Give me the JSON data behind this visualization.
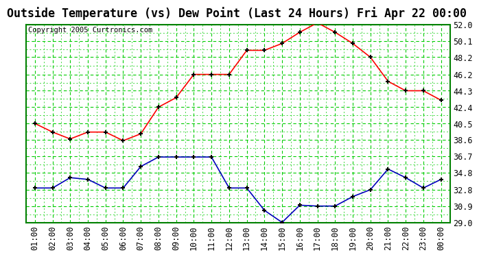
{
  "title": "Outside Temperature (vs) Dew Point (Last 24 Hours) Fri Apr 22 00:00",
  "copyright": "Copyright 2005 Curtronics.com",
  "x_labels": [
    "01:00",
    "02:00",
    "03:00",
    "04:00",
    "05:00",
    "06:00",
    "07:00",
    "08:00",
    "09:00",
    "10:00",
    "11:00",
    "12:00",
    "13:00",
    "14:00",
    "15:00",
    "16:00",
    "17:00",
    "18:00",
    "19:00",
    "20:00",
    "21:00",
    "22:00",
    "23:00",
    "00:00"
  ],
  "temp_data": [
    40.5,
    39.5,
    38.7,
    39.5,
    39.5,
    38.5,
    39.3,
    42.4,
    43.5,
    46.2,
    46.2,
    46.2,
    49.0,
    49.0,
    49.8,
    51.1,
    52.2,
    51.1,
    49.8,
    48.2,
    45.4,
    44.3,
    44.3,
    43.2
  ],
  "dew_data": [
    33.0,
    33.0,
    34.2,
    34.0,
    33.0,
    33.0,
    35.5,
    36.6,
    36.6,
    36.6,
    36.6,
    33.0,
    33.0,
    30.4,
    29.0,
    31.0,
    30.9,
    30.9,
    32.0,
    32.8,
    35.2,
    34.2,
    33.0,
    34.0
  ],
  "temp_color": "#ff0000",
  "dew_color": "#0000bb",
  "background_color": "#ffffff",
  "plot_bg_color": "#ffffff",
  "grid_color": "#00cc00",
  "border_color": "#008000",
  "y_min": 29.0,
  "y_max": 52.0,
  "y_ticks": [
    29.0,
    30.9,
    32.8,
    34.8,
    36.7,
    38.6,
    40.5,
    42.4,
    44.3,
    46.2,
    48.2,
    50.1,
    52.0
  ],
  "title_fontsize": 12,
  "tick_fontsize": 8.5,
  "copyright_fontsize": 7.5
}
